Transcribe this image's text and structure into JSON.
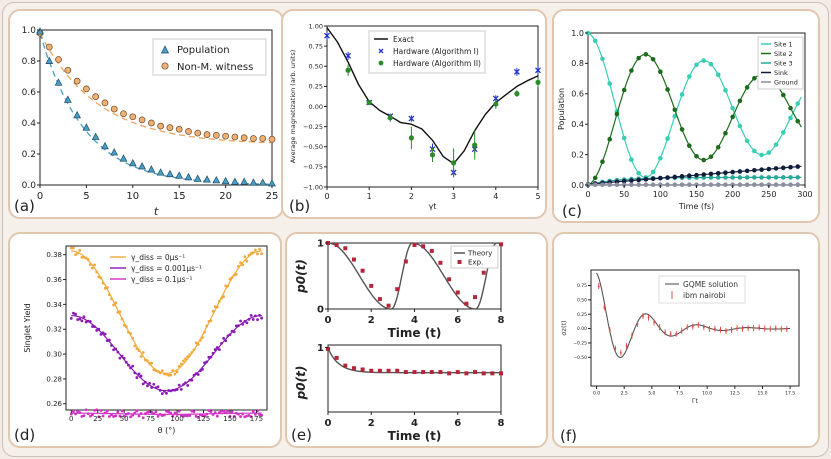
{
  "colors": {
    "card_border": "#e1c6b0",
    "population": "#4a9ec7",
    "witness": "#f0b072",
    "fit": "#f0a35c",
    "hw1": "#2233cc",
    "hw2": "#2d8a2d",
    "site1": "#38cfb1",
    "site2": "#1e6b1e",
    "site3": "#2aa89a",
    "sink": "#101c3c",
    "ground": "#8a8ea0",
    "yield0": "#f2a93b",
    "yield1": "#8a1ab3",
    "yield2": "#d230c6",
    "p0_points": "#b3263a",
    "gqme": "#555555",
    "ibm": "#e8453a"
  },
  "chart_data": [
    {
      "id": "a",
      "panel_label": "(a)",
      "type": "scatter",
      "xlabel": "t",
      "ylabel": "",
      "xlim": [
        0,
        25
      ],
      "ylim": [
        0,
        1
      ],
      "xticks": [
        "0",
        "5",
        "10",
        "15",
        "20",
        "25"
      ],
      "yticks": [
        "0.0",
        "0.2",
        "0.4",
        "0.6",
        "0.8",
        "1.0"
      ],
      "legend": "top-right",
      "series": [
        {
          "name": "Population",
          "marker": "triangle",
          "x": [
            0,
            1,
            2,
            3,
            4,
            5,
            6,
            7,
            8,
            9,
            10,
            11,
            12,
            13,
            14,
            15,
            16,
            17,
            18,
            19,
            20,
            21,
            22,
            23,
            24,
            25
          ],
          "y": [
            0.99,
            0.8,
            0.66,
            0.55,
            0.45,
            0.37,
            0.31,
            0.25,
            0.21,
            0.17,
            0.14,
            0.12,
            0.1,
            0.08,
            0.07,
            0.06,
            0.05,
            0.04,
            0.035,
            0.03,
            0.025,
            0.02,
            0.02,
            0.015,
            0.015,
            0.01
          ]
        },
        {
          "name": "Non-M. witness",
          "marker": "circle",
          "x": [
            0,
            1,
            2,
            3,
            4,
            5,
            6,
            7,
            8,
            9,
            10,
            11,
            12,
            13,
            14,
            15,
            16,
            17,
            18,
            19,
            20,
            21,
            22,
            23,
            24,
            25
          ],
          "y": [
            0.98,
            0.89,
            0.81,
            0.74,
            0.67,
            0.62,
            0.57,
            0.53,
            0.49,
            0.46,
            0.44,
            0.42,
            0.4,
            0.38,
            0.37,
            0.36,
            0.345,
            0.335,
            0.325,
            0.32,
            0.315,
            0.31,
            0.305,
            0.3,
            0.3,
            0.295
          ]
        }
      ]
    },
    {
      "id": "b",
      "panel_label": "(b)",
      "type": "line",
      "xlabel": "γt",
      "ylabel": "Average magnetization (arb. units)",
      "xlim": [
        0,
        5
      ],
      "ylim": [
        -1,
        1
      ],
      "xticks": [
        "0",
        "1",
        "2",
        "3",
        "4",
        "5"
      ],
      "yticks": [
        "−1.00",
        "−0.75",
        "−0.50",
        "−0.25",
        "0.00",
        "0.25",
        "0.50",
        "0.75",
        "1.00"
      ],
      "legend": "top-right",
      "series": [
        {
          "name": "Exact",
          "x": [
            0,
            0.25,
            0.5,
            0.75,
            1,
            1.25,
            1.5,
            1.75,
            2,
            2.25,
            2.5,
            2.75,
            3,
            3.25,
            3.5,
            3.75,
            4,
            4.25,
            4.5,
            4.75,
            5
          ],
          "y": [
            0.98,
            0.8,
            0.55,
            0.27,
            0.06,
            -0.05,
            -0.12,
            -0.2,
            -0.22,
            -0.28,
            -0.42,
            -0.62,
            -0.71,
            -0.55,
            -0.3,
            -0.1,
            0.05,
            0.15,
            0.25,
            0.32,
            0.38
          ]
        },
        {
          "name": "Hardware (Algorithm I)",
          "x": [
            0,
            0.5,
            1,
            1.5,
            2,
            2.5,
            3,
            3.5,
            4,
            4.5,
            5
          ],
          "y": [
            0.88,
            0.63,
            0.05,
            -0.12,
            -0.15,
            -0.53,
            -0.82,
            -0.53,
            0.1,
            0.43,
            0.45
          ],
          "err": [
            0.05,
            0.05,
            0.03,
            0.03,
            0.04,
            0.07,
            0.05,
            0.05,
            0.04,
            0.05,
            0.05
          ]
        },
        {
          "name": "Hardware (Algorithm II)",
          "x": [
            0.5,
            1,
            1.5,
            2,
            2.5,
            3,
            3.5,
            4,
            4.5,
            5
          ],
          "y": [
            0.45,
            0.05,
            -0.14,
            -0.39,
            -0.6,
            -0.7,
            -0.48,
            0.03,
            0.16,
            0.3
          ],
          "err": [
            0.07,
            0.03,
            0.05,
            0.14,
            0.09,
            0.18,
            0.18,
            0.06,
            0.04,
            0.06
          ]
        }
      ]
    },
    {
      "id": "c",
      "panel_label": "(c)",
      "type": "line",
      "xlabel": "Time (fs)",
      "ylabel": "Population",
      "xlim": [
        0,
        300
      ],
      "ylim": [
        0,
        1
      ],
      "xticks": [
        "0",
        "50",
        "100",
        "150",
        "200",
        "250",
        "300"
      ],
      "yticks": [
        "0.0",
        "0.2",
        "0.4",
        "0.6",
        "0.8",
        "1.0"
      ],
      "legend": "top-right",
      "series": [
        {
          "name": "Site 1",
          "key": "site1"
        },
        {
          "name": "Site 2",
          "key": "site2"
        },
        {
          "name": "Site 3",
          "key": "site3"
        },
        {
          "name": "Sink",
          "key": "sink"
        },
        {
          "name": "Ground",
          "key": "ground"
        }
      ]
    },
    {
      "id": "d",
      "panel_label": "(d)",
      "type": "scatter",
      "xlabel": "θ (°)",
      "ylabel": "Singlet Yield",
      "xlim": [
        0,
        180
      ],
      "ylim": [
        0.255,
        0.385
      ],
      "xticks": [
        "0",
        "25",
        "50",
        "75",
        "100",
        "125",
        "150",
        "175"
      ],
      "yticks": [
        "0.26",
        "0.28",
        "0.30",
        "0.32",
        "0.34",
        "0.36",
        "0.38"
      ],
      "legend": "top-center",
      "series": [
        {
          "name": "γ_diss = 0μs⁻¹",
          "center": 0.2845,
          "amp": 0.0985
        },
        {
          "name": "γ_diss = 0.001μs⁻¹",
          "center": 0.2705,
          "amp": 0.0605
        },
        {
          "name": "γ_diss = 0.1μs⁻¹",
          "center": 0.2515,
          "amp": 0.001
        }
      ]
    },
    {
      "id": "e1",
      "panel_label": "(e)",
      "type": "line",
      "xlabel": "Time (t)",
      "ylabel": "p0(t)",
      "xlim": [
        0,
        8
      ],
      "ylim": [
        0,
        1
      ],
      "xticks": [
        "0",
        "2",
        "4",
        "6",
        "8"
      ],
      "yticks": [
        "0",
        "1"
      ],
      "legend": "top-right",
      "series": [
        {
          "name": "Theory"
        },
        {
          "name": "Exp.",
          "x": [
            0,
            0.4,
            0.8,
            1.2,
            1.6,
            2.0,
            2.4,
            2.8,
            3.2,
            3.6,
            4.0,
            4.4,
            4.8,
            5.2,
            5.6,
            6.0,
            6.4,
            6.8,
            7.2,
            7.6,
            8.0
          ],
          "y": [
            1.0,
            0.97,
            0.92,
            0.75,
            0.58,
            0.35,
            0.15,
            0.05,
            0.3,
            0.72,
            0.97,
            0.95,
            0.88,
            0.7,
            0.45,
            0.25,
            0.08,
            0.18,
            0.55,
            0.93,
            0.98
          ]
        }
      ]
    },
    {
      "id": "e2",
      "type": "line",
      "xlabel": "Time (t)",
      "ylabel": "p0(t)",
      "xlim": [
        0,
        8
      ],
      "ylim": [
        0.5,
        1
      ],
      "xticks": [
        "0",
        "2",
        "4",
        "6",
        "8"
      ],
      "yticks": [
        "1"
      ],
      "series": [
        {
          "x": [
            0,
            0.4,
            0.8,
            1.2,
            1.6,
            2.0,
            2.4,
            2.8,
            3.2,
            3.6,
            4.0,
            4.4,
            4.8,
            5.2,
            5.6,
            6.0,
            6.4,
            6.8,
            7.2,
            7.6,
            8.0
          ],
          "y": [
            0.99,
            0.92,
            0.86,
            0.84,
            0.83,
            0.82,
            0.82,
            0.82,
            0.82,
            0.81,
            0.81,
            0.81,
            0.81,
            0.81,
            0.8,
            0.81,
            0.8,
            0.81,
            0.8,
            0.8,
            0.8
          ]
        }
      ]
    },
    {
      "id": "f",
      "panel_label": "(f)",
      "type": "line",
      "xlabel": "Γt",
      "ylabel": "σz(t)",
      "xlim": [
        0,
        18
      ],
      "ylim": [
        -1,
        1
      ],
      "xticks": [
        "0.0",
        "2.5",
        "5.0",
        "7.5",
        "10.0",
        "12.5",
        "15.0",
        "17.5"
      ],
      "yticks": [
        "−0.50",
        "−0.25",
        "0.00",
        "0.25",
        "0.50",
        "0.75"
      ],
      "legend": "top-center",
      "series": [
        {
          "name": "GQME solution"
        },
        {
          "name": "ibm nairobi"
        }
      ]
    }
  ]
}
